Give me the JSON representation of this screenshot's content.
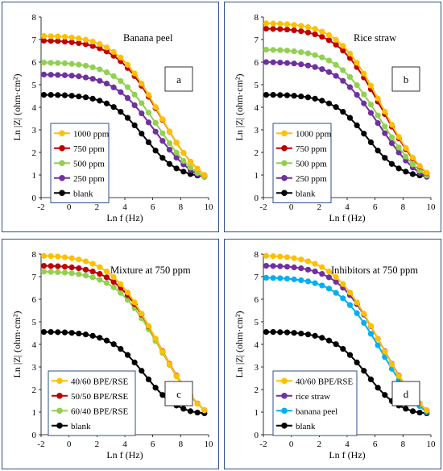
{
  "chart_data": [
    {
      "type": "line",
      "title": "Banana peel",
      "panel_label": "a",
      "xlabel": "Ln f (Hz)",
      "ylabel": "Ln |Z| (ohm·cm²)",
      "xlim": [
        -2,
        10
      ],
      "ylim": [
        0,
        8
      ],
      "xticks": [
        "-2",
        "0",
        "2",
        "4",
        "6",
        "8",
        "10"
      ],
      "yticks": [
        "0",
        "1",
        "2",
        "3",
        "4",
        "5",
        "6",
        "7",
        "8"
      ],
      "grid": false,
      "legend_position": "bottom-left",
      "x": [
        -1.8,
        -1.3,
        -0.8,
        -0.3,
        0.2,
        0.7,
        1.2,
        1.7,
        2.2,
        2.7,
        3.2,
        3.7,
        4.2,
        4.7,
        5.2,
        5.7,
        6.2,
        6.7,
        7.2,
        7.7,
        8.2,
        8.7,
        9.2,
        9.7
      ],
      "series": [
        {
          "name": "1000 ppm",
          "color": "#ffc000",
          "values": [
            7.16,
            7.15,
            7.14,
            7.12,
            7.09,
            7.05,
            6.99,
            6.91,
            6.8,
            6.65,
            6.45,
            6.2,
            5.88,
            5.5,
            5.05,
            4.55,
            4.01,
            3.47,
            2.93,
            2.43,
            1.98,
            1.59,
            1.27,
            1.0
          ]
        },
        {
          "name": "750 ppm",
          "color": "#c00000",
          "values": [
            6.95,
            6.94,
            6.93,
            6.91,
            6.88,
            6.84,
            6.79,
            6.71,
            6.61,
            6.47,
            6.28,
            6.04,
            5.74,
            5.38,
            4.95,
            4.47,
            3.96,
            3.44,
            2.92,
            2.43,
            1.98,
            1.59,
            1.27,
            1.0
          ]
        },
        {
          "name": "500 ppm",
          "color": "#92d050",
          "values": [
            5.98,
            5.97,
            5.96,
            5.95,
            5.92,
            5.89,
            5.84,
            5.77,
            5.68,
            5.55,
            5.38,
            5.16,
            4.89,
            4.56,
            4.18,
            3.76,
            3.31,
            2.85,
            2.41,
            1.99,
            1.63,
            1.33,
            1.09,
            0.93
          ]
        },
        {
          "name": "250 ppm",
          "color": "#7030a0",
          "values": [
            5.45,
            5.44,
            5.43,
            5.42,
            5.4,
            5.37,
            5.32,
            5.26,
            5.17,
            5.05,
            4.88,
            4.67,
            4.41,
            4.09,
            3.73,
            3.33,
            2.92,
            2.51,
            2.12,
            1.77,
            1.47,
            1.22,
            1.03,
            0.92
          ]
        },
        {
          "name": "blank",
          "color": "#000000",
          "values": [
            4.55,
            4.55,
            4.54,
            4.53,
            4.51,
            4.48,
            4.44,
            4.38,
            4.29,
            4.17,
            4.01,
            3.8,
            3.53,
            3.2,
            2.83,
            2.45,
            2.08,
            1.76,
            1.49,
            1.29,
            1.15,
            1.04,
            0.98,
            0.95
          ]
        }
      ]
    },
    {
      "type": "line",
      "title": "Rice straw",
      "panel_label": "b",
      "xlabel": "Ln f (Hz)",
      "ylabel": "Ln |Z| (ohm·cm²)",
      "xlim": [
        -2,
        10
      ],
      "ylim": [
        0,
        8
      ],
      "xticks": [
        "-2",
        "0",
        "2",
        "4",
        "6",
        "8",
        "10"
      ],
      "yticks": [
        "0",
        "1",
        "2",
        "3",
        "4",
        "5",
        "6",
        "7",
        "8"
      ],
      "grid": false,
      "legend_position": "bottom-left",
      "x": [
        -1.8,
        -1.3,
        -0.8,
        -0.3,
        0.2,
        0.7,
        1.2,
        1.7,
        2.2,
        2.7,
        3.2,
        3.7,
        4.2,
        4.7,
        5.2,
        5.7,
        6.2,
        6.7,
        7.2,
        7.7,
        8.2,
        8.7,
        9.2,
        9.7
      ],
      "series": [
        {
          "name": "1000 ppm",
          "color": "#ffc000",
          "values": [
            7.72,
            7.71,
            7.7,
            7.68,
            7.65,
            7.61,
            7.55,
            7.47,
            7.35,
            7.2,
            6.99,
            6.72,
            6.38,
            5.97,
            5.49,
            4.96,
            4.39,
            3.81,
            3.23,
            2.69,
            2.2,
            1.77,
            1.41,
            1.1
          ]
        },
        {
          "name": "750 ppm",
          "color": "#c00000",
          "values": [
            7.48,
            7.47,
            7.46,
            7.44,
            7.41,
            7.37,
            7.31,
            7.23,
            7.12,
            6.97,
            6.77,
            6.51,
            6.18,
            5.78,
            5.32,
            4.8,
            4.25,
            3.7,
            3.14,
            2.62,
            2.14,
            1.73,
            1.38,
            1.08
          ]
        },
        {
          "name": "500 ppm",
          "color": "#92d050",
          "values": [
            6.55,
            6.54,
            6.53,
            6.51,
            6.48,
            6.44,
            6.39,
            6.31,
            6.21,
            6.07,
            5.88,
            5.64,
            5.34,
            4.98,
            4.57,
            4.12,
            3.64,
            3.15,
            2.67,
            2.22,
            1.82,
            1.47,
            1.2,
            0.98
          ]
        },
        {
          "name": "250 ppm",
          "color": "#7030a0",
          "values": [
            6.0,
            5.99,
            5.98,
            5.96,
            5.94,
            5.9,
            5.85,
            5.78,
            5.69,
            5.56,
            5.39,
            5.17,
            4.89,
            4.55,
            4.17,
            3.75,
            3.3,
            2.85,
            2.41,
            2.0,
            1.64,
            1.33,
            1.09,
            0.92
          ]
        },
        {
          "name": "blank",
          "color": "#000000",
          "values": [
            4.55,
            4.55,
            4.54,
            4.53,
            4.51,
            4.48,
            4.44,
            4.38,
            4.29,
            4.17,
            4.01,
            3.8,
            3.53,
            3.2,
            2.83,
            2.45,
            2.08,
            1.76,
            1.49,
            1.29,
            1.15,
            1.04,
            0.98,
            0.95
          ]
        }
      ]
    },
    {
      "type": "line",
      "title": "Mixture at 750 ppm",
      "panel_label": "c",
      "xlabel": "Ln f (Hz)",
      "ylabel": "Ln |Z| (ohm·cm²)",
      "xlim": [
        -2,
        10
      ],
      "ylim": [
        0,
        8
      ],
      "xticks": [
        "-2",
        "0",
        "2",
        "4",
        "6",
        "8",
        "10"
      ],
      "yticks": [
        "0",
        "1",
        "2",
        "3",
        "4",
        "5",
        "6",
        "7",
        "8"
      ],
      "grid": false,
      "legend_position": "bottom-left",
      "x": [
        -1.8,
        -1.3,
        -0.8,
        -0.3,
        0.2,
        0.7,
        1.2,
        1.7,
        2.2,
        2.7,
        3.2,
        3.7,
        4.2,
        4.7,
        5.2,
        5.7,
        6.2,
        6.7,
        7.2,
        7.7,
        8.2,
        8.7,
        9.2,
        9.7
      ],
      "series": [
        {
          "name": "40/60 BPE/RSE",
          "color": "#ffc000",
          "values": [
            7.92,
            7.91,
            7.89,
            7.86,
            7.82,
            7.76,
            7.68,
            7.57,
            7.42,
            7.23,
            6.98,
            6.67,
            6.3,
            5.86,
            5.36,
            4.82,
            4.25,
            3.68,
            3.12,
            2.6,
            2.13,
            1.72,
            1.37,
            1.08
          ]
        },
        {
          "name": "50/50 BPE/RSE",
          "color": "#c00000",
          "values": [
            7.48,
            7.47,
            7.46,
            7.44,
            7.41,
            7.37,
            7.31,
            7.23,
            7.12,
            6.97,
            6.77,
            6.51,
            6.18,
            5.78,
            5.32,
            4.8,
            4.25,
            3.7,
            3.14,
            2.62,
            2.14,
            1.73,
            1.38,
            1.08
          ]
        },
        {
          "name": "60/40 BPE/RSE",
          "color": "#92d050",
          "values": [
            7.22,
            7.21,
            7.2,
            7.18,
            7.15,
            7.11,
            7.05,
            6.97,
            6.86,
            6.72,
            6.53,
            6.28,
            5.97,
            5.6,
            5.16,
            4.67,
            4.15,
            3.62,
            3.09,
            2.58,
            2.12,
            1.71,
            1.37,
            1.08
          ]
        },
        {
          "name": "blank",
          "color": "#000000",
          "values": [
            4.55,
            4.55,
            4.54,
            4.53,
            4.51,
            4.48,
            4.44,
            4.38,
            4.29,
            4.17,
            4.01,
            3.8,
            3.53,
            3.2,
            2.83,
            2.45,
            2.08,
            1.76,
            1.49,
            1.29,
            1.15,
            1.04,
            0.98,
            0.95
          ]
        }
      ]
    },
    {
      "type": "line",
      "title": "Inhibitors at 750 ppm",
      "panel_label": "d",
      "xlabel": "Ln f (Hz)",
      "ylabel": "Ln |Z| (ohm·cm²)",
      "xlim": [
        -2,
        10
      ],
      "ylim": [
        0,
        8
      ],
      "xticks": [
        "-2",
        "0",
        "2",
        "4",
        "6",
        "8",
        "10"
      ],
      "yticks": [
        "0",
        "1",
        "2",
        "3",
        "4",
        "5",
        "6",
        "7",
        "8"
      ],
      "grid": false,
      "legend_position": "bottom-left",
      "x": [
        -1.8,
        -1.3,
        -0.8,
        -0.3,
        0.2,
        0.7,
        1.2,
        1.7,
        2.2,
        2.7,
        3.2,
        3.7,
        4.2,
        4.7,
        5.2,
        5.7,
        6.2,
        6.7,
        7.2,
        7.7,
        8.2,
        8.7,
        9.2,
        9.7
      ],
      "series": [
        {
          "name": "40/60 BPE/RSE",
          "color": "#ffc000",
          "values": [
            7.92,
            7.91,
            7.89,
            7.86,
            7.82,
            7.76,
            7.68,
            7.57,
            7.42,
            7.23,
            6.98,
            6.67,
            6.3,
            5.86,
            5.36,
            4.82,
            4.25,
            3.68,
            3.12,
            2.6,
            2.13,
            1.72,
            1.37,
            1.08
          ]
        },
        {
          "name": "rice straw",
          "color": "#7030a0",
          "values": [
            7.48,
            7.47,
            7.46,
            7.44,
            7.41,
            7.37,
            7.31,
            7.23,
            7.12,
            6.97,
            6.77,
            6.51,
            6.18,
            5.78,
            5.32,
            4.8,
            4.25,
            3.7,
            3.14,
            2.62,
            2.14,
            1.73,
            1.38,
            1.08
          ]
        },
        {
          "name": "banana peel",
          "color": "#00b0f0",
          "values": [
            6.95,
            6.94,
            6.93,
            6.91,
            6.88,
            6.84,
            6.79,
            6.71,
            6.61,
            6.47,
            6.28,
            6.04,
            5.74,
            5.38,
            4.95,
            4.47,
            3.96,
            3.44,
            2.92,
            2.43,
            1.98,
            1.59,
            1.27,
            1.0
          ]
        },
        {
          "name": "blank",
          "color": "#000000",
          "values": [
            4.55,
            4.55,
            4.54,
            4.53,
            4.51,
            4.48,
            4.44,
            4.38,
            4.29,
            4.17,
            4.01,
            3.8,
            3.53,
            3.2,
            2.83,
            2.45,
            2.08,
            1.76,
            1.49,
            1.29,
            1.15,
            1.04,
            0.98,
            0.95
          ]
        }
      ]
    }
  ]
}
